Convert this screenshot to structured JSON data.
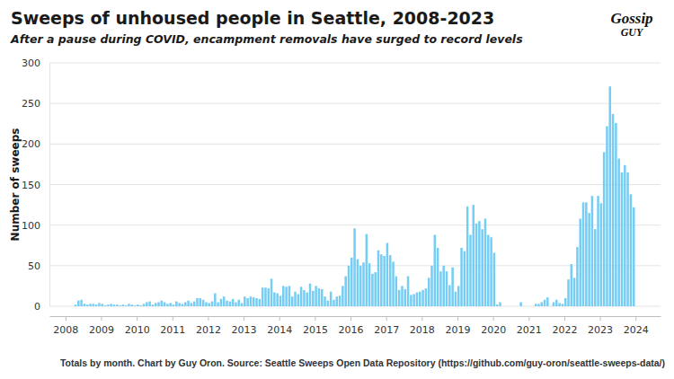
{
  "chart_data": {
    "type": "bar",
    "title": "Sweeps of unhoused people in Seattle, 2008-2023",
    "subtitle": "After a pause during COVID, encampment removals have surged to record levels",
    "y_label": "Number of sweeps",
    "footer": "Totals by month. Chart by Guy Oron. Source: Seattle Sweeps Open Data Repository (https://github.com/guy-oron/seattle-sweeps-data/)",
    "logo": [
      "Gossip",
      "GUY"
    ],
    "color": "#76cdf4",
    "grid": true,
    "xlim": [
      2007.55,
      2024.7
    ],
    "xticks": [
      2008,
      2009,
      2010,
      2011,
      2012,
      2013,
      2014,
      2015,
      2016,
      2017,
      2018,
      2019,
      2020,
      2021,
      2022,
      2023,
      2024
    ],
    "ylim": [
      0,
      300
    ],
    "yticks": [
      0,
      50,
      100,
      150,
      200,
      250,
      300
    ],
    "x": [
      2008,
      2008.083,
      2008.167,
      2008.25,
      2008.333,
      2008.417,
      2008.5,
      2008.583,
      2008.667,
      2008.75,
      2008.833,
      2008.917,
      2009,
      2009.083,
      2009.167,
      2009.25,
      2009.333,
      2009.417,
      2009.5,
      2009.583,
      2009.667,
      2009.75,
      2009.833,
      2009.917,
      2010,
      2010.083,
      2010.167,
      2010.25,
      2010.333,
      2010.417,
      2010.5,
      2010.583,
      2010.667,
      2010.75,
      2010.833,
      2010.917,
      2011,
      2011.083,
      2011.167,
      2011.25,
      2011.333,
      2011.417,
      2011.5,
      2011.583,
      2011.667,
      2011.75,
      2011.833,
      2011.917,
      2012,
      2012.083,
      2012.167,
      2012.25,
      2012.333,
      2012.417,
      2012.5,
      2012.583,
      2012.667,
      2012.75,
      2012.833,
      2012.917,
      2013,
      2013.083,
      2013.167,
      2013.25,
      2013.333,
      2013.417,
      2013.5,
      2013.583,
      2013.667,
      2013.75,
      2013.833,
      2013.917,
      2014,
      2014.083,
      2014.167,
      2014.25,
      2014.333,
      2014.417,
      2014.5,
      2014.583,
      2014.667,
      2014.75,
      2014.833,
      2014.917,
      2015,
      2015.083,
      2015.167,
      2015.25,
      2015.333,
      2015.417,
      2015.5,
      2015.583,
      2015.667,
      2015.75,
      2015.833,
      2015.917,
      2016,
      2016.083,
      2016.167,
      2016.25,
      2016.333,
      2016.417,
      2016.5,
      2016.583,
      2016.667,
      2016.75,
      2016.833,
      2016.917,
      2017,
      2017.083,
      2017.167,
      2017.25,
      2017.333,
      2017.417,
      2017.5,
      2017.583,
      2017.667,
      2017.75,
      2017.833,
      2017.917,
      2018,
      2018.083,
      2018.167,
      2018.25,
      2018.333,
      2018.417,
      2018.5,
      2018.583,
      2018.667,
      2018.75,
      2018.833,
      2018.917,
      2019,
      2019.083,
      2019.167,
      2019.25,
      2019.333,
      2019.417,
      2019.5,
      2019.583,
      2019.667,
      2019.75,
      2019.833,
      2019.917,
      2020,
      2020.083,
      2020.167,
      2020.25,
      2020.333,
      2020.417,
      2020.5,
      2020.583,
      2020.667,
      2020.75,
      2020.833,
      2020.917,
      2021,
      2021.083,
      2021.167,
      2021.25,
      2021.333,
      2021.417,
      2021.5,
      2021.583,
      2021.667,
      2021.75,
      2021.833,
      2021.917,
      2022,
      2022.083,
      2022.167,
      2022.25,
      2022.333,
      2022.417,
      2022.5,
      2022.583,
      2022.667,
      2022.75,
      2022.833,
      2022.917,
      2023,
      2023.083,
      2023.167,
      2023.25,
      2023.333,
      2023.417,
      2023.5,
      2023.583,
      2023.667,
      2023.75,
      2023.833,
      2023.917
    ],
    "values": [
      0,
      0,
      0,
      2,
      7,
      8,
      3,
      2,
      3,
      3,
      2,
      4,
      3,
      1,
      2,
      3,
      2,
      2,
      1,
      2,
      1,
      3,
      2,
      1,
      2,
      1,
      3,
      5,
      6,
      2,
      4,
      5,
      7,
      5,
      3,
      4,
      2,
      6,
      4,
      3,
      5,
      7,
      4,
      6,
      10,
      10,
      8,
      5,
      4,
      6,
      16,
      5,
      9,
      12,
      7,
      6,
      9,
      5,
      8,
      4,
      12,
      10,
      12,
      11,
      10,
      9,
      23,
      23,
      22,
      34,
      17,
      16,
      13,
      25,
      24,
      25,
      12,
      18,
      15,
      24,
      20,
      17,
      28,
      19,
      25,
      22,
      21,
      12,
      7,
      18,
      8,
      12,
      13,
      25,
      37,
      50,
      60,
      96,
      58,
      50,
      54,
      89,
      53,
      40,
      42,
      69,
      64,
      62,
      78,
      63,
      55,
      37,
      20,
      25,
      21,
      37,
      14,
      15,
      17,
      18,
      20,
      22,
      35,
      50,
      88,
      72,
      43,
      50,
      43,
      26,
      48,
      18,
      25,
      72,
      68,
      123,
      88,
      125,
      102,
      105,
      95,
      108,
      88,
      85,
      66,
      2,
      5,
      0,
      0,
      0,
      0,
      0,
      0,
      5,
      0,
      0,
      0,
      0,
      3,
      3,
      5,
      8,
      11,
      0,
      5,
      8,
      4,
      3,
      10,
      33,
      52,
      35,
      73,
      108,
      128,
      128,
      115,
      136,
      95,
      136,
      127,
      190,
      222,
      271,
      237,
      226,
      182,
      165,
      174,
      165,
      138,
      122
    ]
  }
}
